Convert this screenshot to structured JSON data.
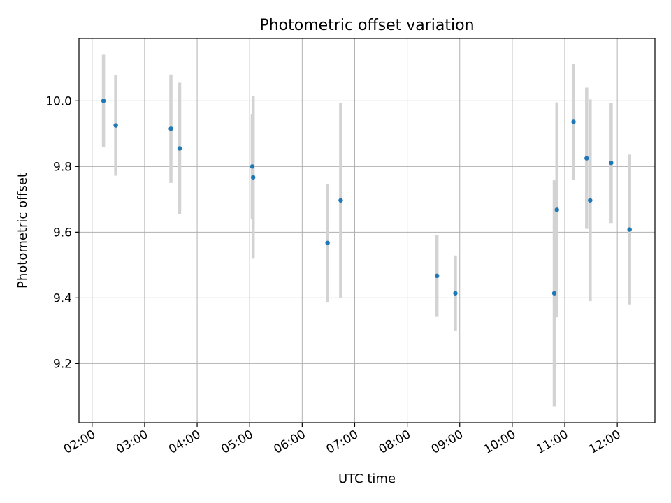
{
  "chart_data": {
    "type": "scatter",
    "title": "Photometric offset variation",
    "xlabel": "UTC time",
    "ylabel": "Photometric offset",
    "x_ticks": [
      "02:00",
      "03:00",
      "04:00",
      "05:00",
      "06:00",
      "07:00",
      "08:00",
      "09:00",
      "10:00",
      "11:00",
      "12:00"
    ],
    "y_ticks": [
      "9.2",
      "9.4",
      "9.6",
      "9.8",
      "10.0"
    ],
    "xlim": [
      "01:45",
      "12:43"
    ],
    "ylim": [
      9.02,
      10.19
    ],
    "grid": true,
    "point_color": "#1f77b4",
    "errorbar_color": "#d3d3d3",
    "series": [
      {
        "points": [
          {
            "x": "02:13",
            "y": 10.0,
            "yerr": 0.14
          },
          {
            "x": "02:27",
            "y": 9.925,
            "yerr": 0.153
          },
          {
            "x": "03:30",
            "y": 9.915,
            "yerr": 0.165
          },
          {
            "x": "03:40",
            "y": 9.855,
            "yerr": 0.2
          },
          {
            "x": "05:03",
            "y": 9.8,
            "yerr": 0.16
          },
          {
            "x": "05:04",
            "y": 9.767,
            "yerr": 0.248
          },
          {
            "x": "06:29",
            "y": 9.567,
            "yerr": 0.18
          },
          {
            "x": "06:44",
            "y": 9.697,
            "yerr": 0.296
          },
          {
            "x": "08:34",
            "y": 9.467,
            "yerr": 0.125
          },
          {
            "x": "08:55",
            "y": 9.414,
            "yerr": 0.115
          },
          {
            "x": "10:48",
            "y": 9.414,
            "yerr": 0.344
          },
          {
            "x": "10:51",
            "y": 9.668,
            "yerr": 0.327
          },
          {
            "x": "11:10",
            "y": 9.936,
            "yerr": 0.177
          },
          {
            "x": "11:25",
            "y": 9.825,
            "yerr": 0.215
          },
          {
            "x": "11:29",
            "y": 9.697,
            "yerr": 0.307
          },
          {
            "x": "11:53",
            "y": 9.811,
            "yerr": 0.183
          },
          {
            "x": "12:14",
            "y": 9.608,
            "yerr": 0.228
          }
        ]
      }
    ]
  }
}
